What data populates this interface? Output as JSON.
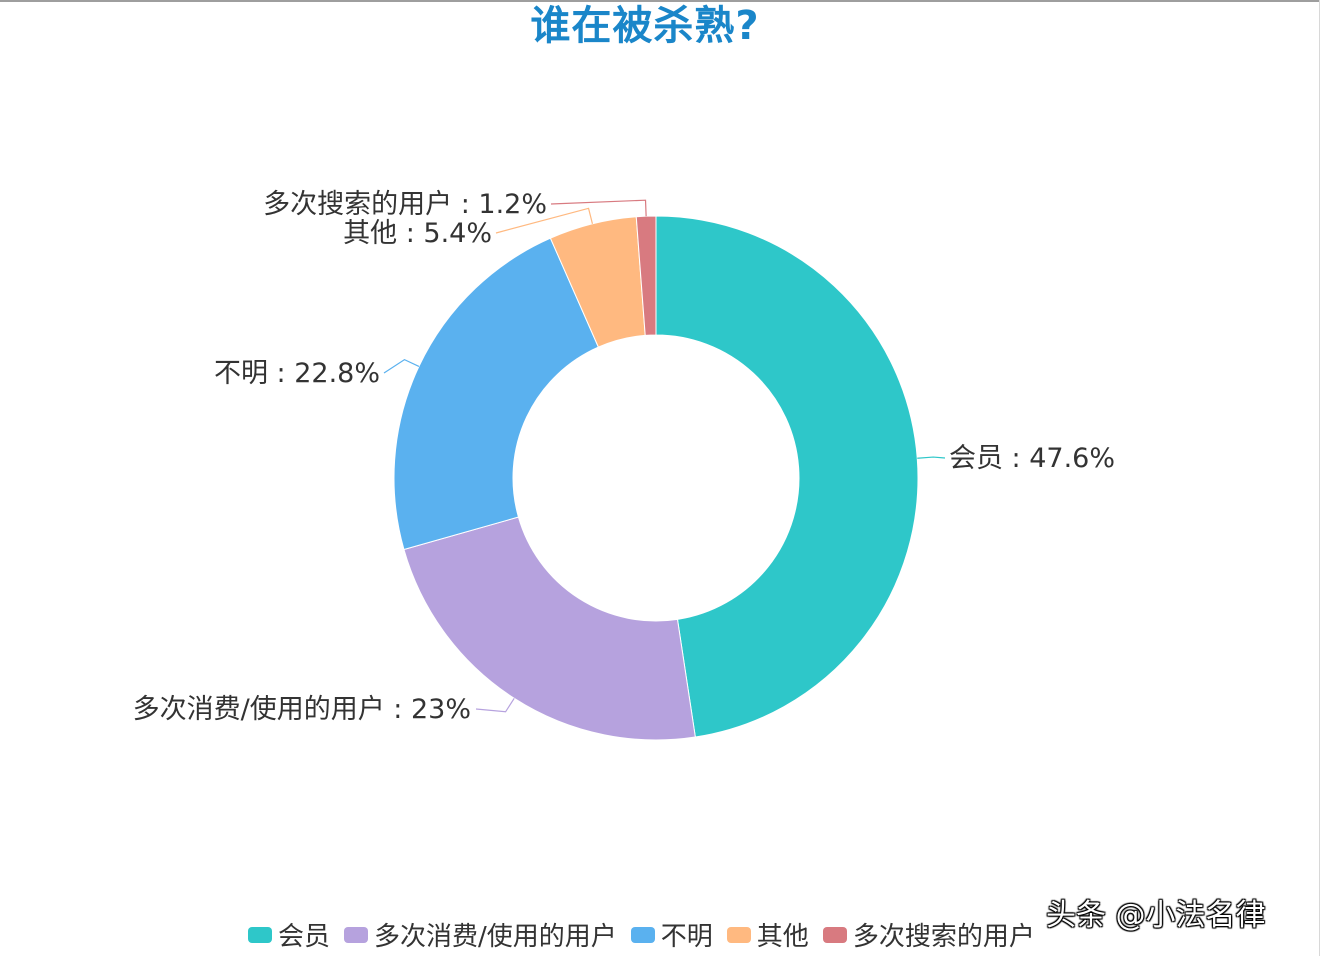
{
  "chart_data": {
    "type": "pie",
    "variant": "donut",
    "title": "谁在被杀熟?",
    "slices": [
      {
        "name": "会员",
        "value": 47.6,
        "label": "会员 : 47.6%",
        "color": "#2ec7c9"
      },
      {
        "name": "多次消费/使用的用户",
        "value": 23,
        "label": "多次消费/使用的用户 : 23%",
        "color": "#b6a2de"
      },
      {
        "name": "不明",
        "value": 22.8,
        "label": "不明 : 22.8%",
        "color": "#5ab1ef"
      },
      {
        "name": "其他",
        "value": 5.4,
        "label": "其他 : 5.4%",
        "color": "#ffb980"
      },
      {
        "name": "多次搜索的用户",
        "value": 1.2,
        "label": "多次搜索的用户 : 1.2%",
        "color": "#d87a80"
      }
    ],
    "legend_position": "bottom"
  },
  "watermark": "头条 @小法名律"
}
